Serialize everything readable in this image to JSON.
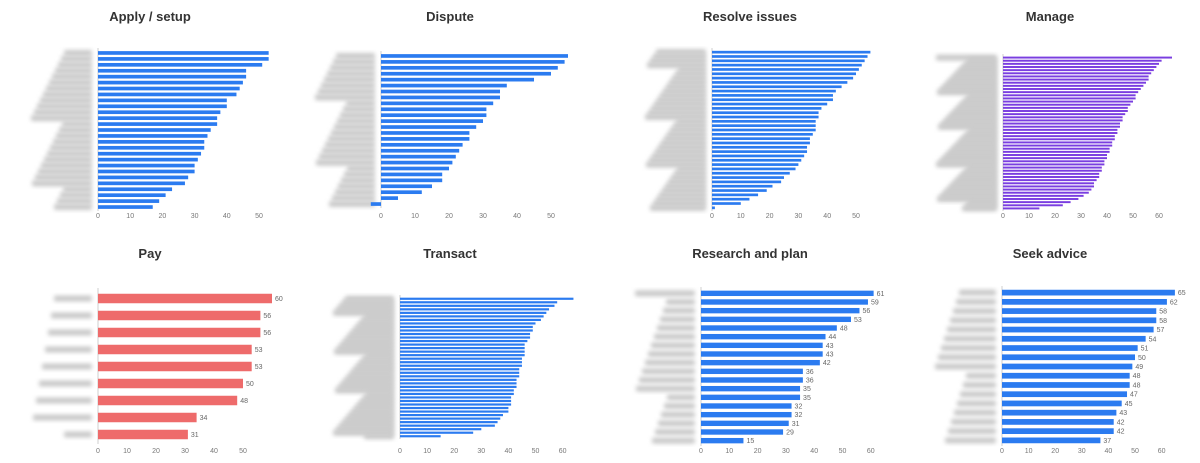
{
  "charts": [
    {
      "title": "Apply / setup",
      "color": "#2b7bf0",
      "type": "bar",
      "xticks": [
        0,
        10,
        20,
        30,
        40,
        50
      ],
      "xlim": [
        -3,
        55
      ],
      "values": [
        53,
        53,
        51,
        46,
        46,
        45,
        44,
        43,
        40,
        40,
        38,
        37,
        37,
        35,
        34,
        33,
        33,
        32,
        31,
        30,
        30,
        28,
        27,
        23,
        21,
        19,
        17
      ],
      "show_values": false
    },
    {
      "title": "Dispute",
      "color": "#2b7bf0",
      "type": "bar",
      "xticks": [
        0,
        10,
        20,
        30,
        40,
        50
      ],
      "xlim": [
        -3,
        55
      ],
      "values": [
        55,
        54,
        52,
        50,
        45,
        37,
        35,
        35,
        33,
        31,
        31,
        30,
        28,
        26,
        26,
        24,
        23,
        22,
        21,
        20,
        18,
        18,
        15,
        12,
        5,
        -3
      ],
      "show_values": false
    },
    {
      "title": "Resolve issues",
      "color": "#2b7bf0",
      "type": "bar",
      "xticks": [
        0,
        10,
        20,
        30,
        40,
        50
      ],
      "xlim": [
        -1,
        57
      ],
      "values": [
        55,
        54,
        53,
        52,
        51,
        50,
        49,
        47,
        45,
        43,
        42,
        42,
        40,
        38,
        37,
        37,
        36,
        36,
        36,
        35,
        34,
        34,
        33,
        33,
        32,
        31,
        30,
        29,
        27,
        25,
        24,
        21,
        19,
        16,
        13,
        10,
        1
      ],
      "show_values": false
    },
    {
      "title": "Manage",
      "color": "#7a3ee0",
      "type": "bar",
      "xticks": [
        0,
        10,
        20,
        30,
        40,
        50,
        60
      ],
      "xlim": [
        0,
        65
      ],
      "values": [
        65,
        61,
        60,
        59,
        58,
        57,
        56,
        56,
        55,
        54,
        53,
        52,
        51,
        51,
        50,
        49,
        48,
        48,
        47,
        46,
        46,
        45,
        45,
        44,
        44,
        43,
        43,
        42,
        42,
        41,
        41,
        40,
        40,
        39,
        39,
        38,
        38,
        37,
        37,
        36,
        35,
        35,
        34,
        33,
        31,
        29,
        26,
        23,
        14
      ],
      "show_values": false
    },
    {
      "title": "Pay",
      "color": "#ee6b6b",
      "type": "bar",
      "xticks": [
        0,
        10,
        20,
        30,
        40,
        50
      ],
      "xlim": [
        0,
        60
      ],
      "values": [
        60,
        56,
        56,
        53,
        53,
        50,
        48,
        34,
        31
      ],
      "show_values": true
    },
    {
      "title": "Transact",
      "color": "#2b7bf0",
      "type": "bar",
      "xticks": [
        0,
        10,
        20,
        30,
        40,
        50,
        60
      ],
      "xlim": [
        0,
        64
      ],
      "values": [
        64,
        58,
        57,
        55,
        54,
        53,
        52,
        50,
        49,
        49,
        48,
        48,
        47,
        46,
        46,
        46,
        46,
        45,
        45,
        45,
        44,
        44,
        44,
        43,
        43,
        43,
        42,
        42,
        41,
        41,
        41,
        40,
        40,
        38,
        37,
        36,
        35,
        30,
        27,
        15
      ],
      "show_values": false
    },
    {
      "title": "Research and plan",
      "color": "#2b7bf0",
      "type": "bar",
      "xticks": [
        0,
        10,
        20,
        30,
        40,
        50,
        60
      ],
      "xlim": [
        0,
        61
      ],
      "values": [
        61,
        59,
        56,
        53,
        48,
        44,
        43,
        43,
        42,
        36,
        36,
        35,
        35,
        32,
        32,
        31,
        29,
        15
      ],
      "show_values": true
    },
    {
      "title": "Seek advice",
      "color": "#2b7bf0",
      "type": "bar",
      "xticks": [
        0,
        10,
        20,
        30,
        40,
        50,
        60
      ],
      "xlim": [
        0,
        65
      ],
      "values": [
        65,
        62,
        58,
        58,
        57,
        54,
        51,
        50,
        49,
        48,
        48,
        47,
        45,
        43,
        42,
        42,
        37
      ],
      "show_values": true
    }
  ]
}
